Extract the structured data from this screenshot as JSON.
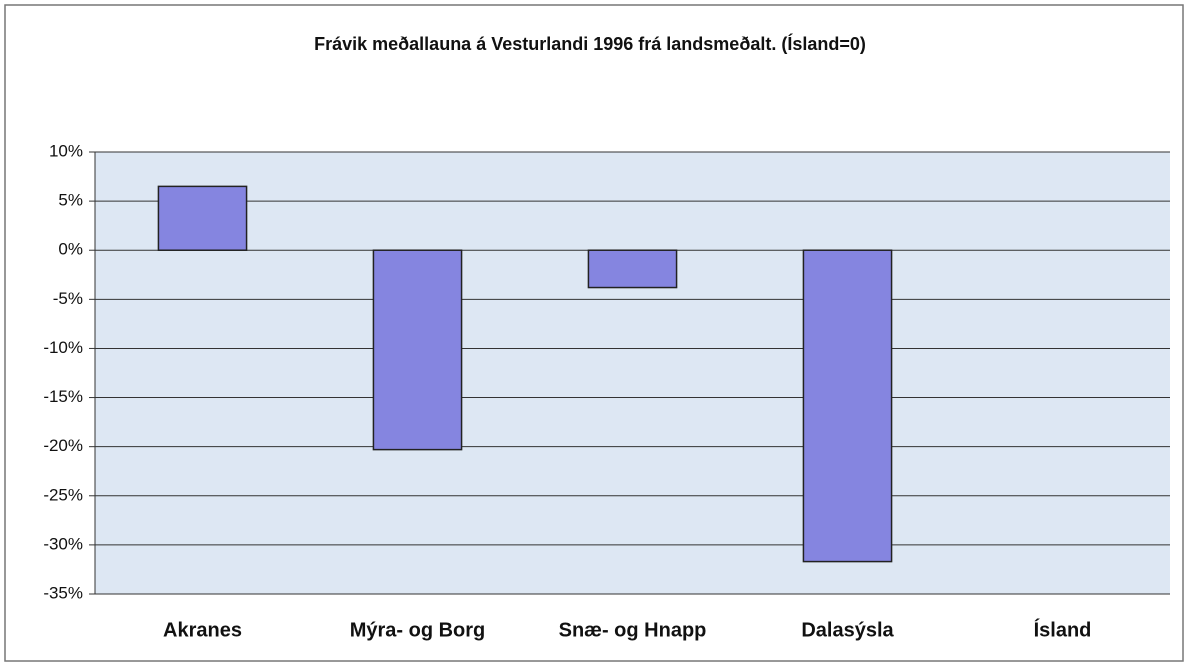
{
  "chart_data": {
    "type": "bar",
    "title": "Frávik meðallauna á Vesturlandi 1996 frá landsmeðalt. (Ísland=0)",
    "categories": [
      "Akranes",
      "Mýra- og Borg",
      "Snæ- og Hnapp",
      "Dalasýsla",
      "Ísland"
    ],
    "values": [
      6.5,
      -20.3,
      -3.8,
      -31.7,
      0
    ],
    "color": "#8585e0",
    "ylim": [
      -35,
      10
    ],
    "yticks": [
      {
        "value": -35,
        "label": "-35%"
      },
      {
        "value": -30,
        "label": "-30%"
      },
      {
        "value": -25,
        "label": "-25%"
      },
      {
        "value": -20,
        "label": "-20%"
      },
      {
        "value": -15,
        "label": "-15%"
      },
      {
        "value": -10,
        "label": "-10%"
      },
      {
        "value": -5,
        "label": "-5%"
      },
      {
        "value": 0,
        "label": "0%"
      },
      {
        "value": 5,
        "label": "5%"
      },
      {
        "value": 10,
        "label": "10%"
      }
    ],
    "grid": true
  }
}
